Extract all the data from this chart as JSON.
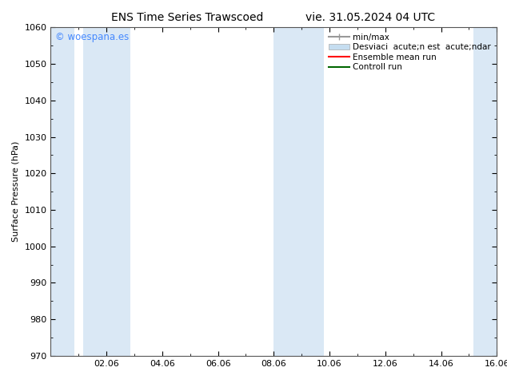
{
  "title_left": "ENS Time Series Trawscoed",
  "title_right": "vie. 31.05.2024 04 UTC",
  "ylabel": "Surface Pressure (hPa)",
  "ylim": [
    970,
    1060
  ],
  "yticks": [
    970,
    980,
    990,
    1000,
    1010,
    1020,
    1030,
    1040,
    1050,
    1060
  ],
  "xlim_start": 0,
  "xlim_end": 16,
  "xtick_labels": [
    "02.06",
    "04.06",
    "06.06",
    "08.06",
    "10.06",
    "12.06",
    "14.06",
    "16.06"
  ],
  "xtick_positions": [
    2,
    4,
    6,
    8,
    10,
    12,
    14,
    16
  ],
  "background_color": "#ffffff",
  "plot_bg_color": "#ffffff",
  "shaded_bands": [
    {
      "x_start": 0.0,
      "x_end": 0.85,
      "color": "#dae8f5"
    },
    {
      "x_start": 1.15,
      "x_end": 2.85,
      "color": "#dae8f5"
    },
    {
      "x_start": 8.0,
      "x_end": 9.8,
      "color": "#dae8f5"
    },
    {
      "x_start": 15.15,
      "x_end": 16.0,
      "color": "#dae8f5"
    }
  ],
  "watermark": "© woespana.es",
  "watermark_color": "#4488ff",
  "legend_entries": [
    {
      "label": "min/max",
      "color": "#999999",
      "style": "hline"
    },
    {
      "label": "Desviaci  acute;n est  acute;ndar",
      "color": "#c5ddf0",
      "style": "bar"
    },
    {
      "label": "Ensemble mean run",
      "color": "#ff0000",
      "style": "line"
    },
    {
      "label": "Controll run",
      "color": "#006600",
      "style": "line"
    }
  ],
  "title_fontsize": 10,
  "axis_fontsize": 8,
  "tick_fontsize": 8,
  "legend_fontsize": 7.5
}
